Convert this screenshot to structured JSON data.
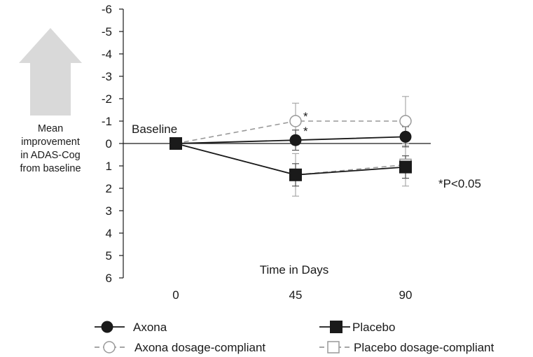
{
  "chart_data": {
    "type": "line",
    "xlabel": "Time in Days",
    "x": [
      0,
      45,
      90
    ],
    "x_tick_labels": [
      "0",
      "45",
      "90"
    ],
    "ylabel_lines": [
      "Mean",
      "improvement",
      "in ADAS-Cog",
      "from baseline"
    ],
    "y_tick_labels": [
      "-6",
      "-5",
      "-4",
      "-3",
      "-2",
      "-1",
      "0",
      "1",
      "2",
      "3",
      "4",
      "5",
      "6"
    ],
    "ylim": [
      -6,
      6
    ],
    "y_inverted": true,
    "baseline_label": "Baseline",
    "significance_note": "*P<0.05",
    "significance_marker": "*",
    "series": [
      {
        "name": "Axona",
        "marker": "filled-circle",
        "line": "solid",
        "color": "#1a1a1a",
        "values": [
          0,
          -0.15,
          -0.3
        ],
        "err": [
          0,
          0.45,
          0.45
        ],
        "sig": [
          false,
          false,
          false
        ]
      },
      {
        "name": "Placebo",
        "marker": "filled-square",
        "line": "solid",
        "color": "#1a1a1a",
        "values": [
          0,
          1.4,
          1.05
        ],
        "err": [
          0,
          0.5,
          0.5
        ],
        "sig": [
          false,
          false,
          false
        ]
      },
      {
        "name": "Axona dosage-compliant",
        "marker": "open-circle",
        "line": "dashed",
        "color": "#999999",
        "values": [
          0,
          -1.0,
          -1.0
        ],
        "err": [
          0,
          0.8,
          1.1
        ],
        "sig": [
          false,
          true,
          false
        ]
      },
      {
        "name": "Placebo dosage-compliant",
        "marker": "open-square",
        "line": "dashed",
        "color": "#999999",
        "values": [
          0,
          1.4,
          0.95
        ],
        "err": [
          0,
          0.95,
          0.95
        ],
        "sig": [
          false,
          false,
          false
        ]
      }
    ],
    "legend_position": "bottom",
    "arrow_direction": "up"
  }
}
